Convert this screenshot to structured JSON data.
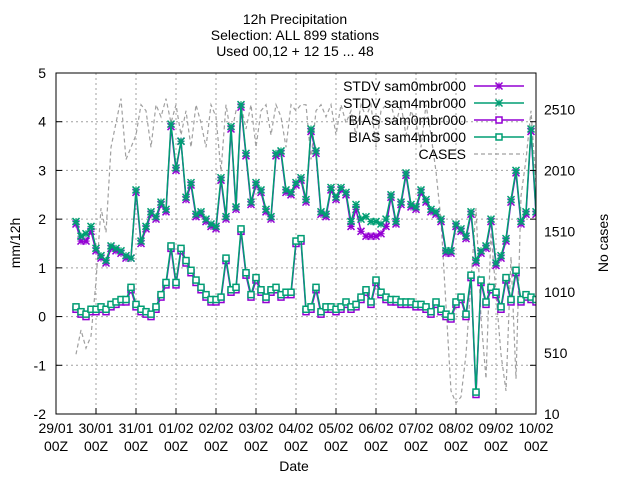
{
  "chart_data": {
    "type": "line",
    "title": [
      "12h Precipitation",
      "Selection: ALL     899 stations",
      "Used 00,12 + 12 15 ... 48"
    ],
    "xlabel": "Date",
    "ylabel": "mm/12h",
    "y2label": "No cases",
    "ylim": [
      -2,
      5
    ],
    "y2lim": [
      10,
      2810
    ],
    "xlim": [
      0,
      12
    ],
    "yticks": [
      "-2",
      "-1",
      "0",
      "1",
      "2",
      "3",
      "4",
      "5"
    ],
    "y2ticks": [
      "10",
      "510",
      "1010",
      "1510",
      "2010",
      "2510"
    ],
    "xticks": [
      {
        "top": "29/01",
        "bottom": "00Z"
      },
      {
        "top": "30/01",
        "bottom": "00Z"
      },
      {
        "top": "31/01",
        "bottom": "00Z"
      },
      {
        "top": "01/02",
        "bottom": "00Z"
      },
      {
        "top": "02/02",
        "bottom": "00Z"
      },
      {
        "top": "03/02",
        "bottom": "00Z"
      },
      {
        "top": "04/02",
        "bottom": "00Z"
      },
      {
        "top": "05/02",
        "bottom": "00Z"
      },
      {
        "top": "06/02",
        "bottom": "00Z"
      },
      {
        "top": "07/02",
        "bottom": "00Z"
      },
      {
        "top": "08/02",
        "bottom": "00Z"
      },
      {
        "top": "09/02",
        "bottom": "00Z"
      },
      {
        "top": "10/02",
        "bottom": "00Z"
      }
    ],
    "grid": true,
    "legend_position": "top-right",
    "series": [
      {
        "name": "STDV sam0mbr000",
        "color": "#9400d3",
        "marker": "x",
        "x": [
          0.5,
          0.625,
          0.75,
          0.875,
          1.0,
          1.125,
          1.25,
          1.375,
          1.5,
          1.625,
          1.75,
          1.875,
          2.0,
          2.125,
          2.25,
          2.375,
          2.5,
          2.625,
          2.75,
          2.875,
          3.0,
          3.125,
          3.25,
          3.375,
          3.5,
          3.625,
          3.75,
          3.875,
          4.0,
          4.125,
          4.25,
          4.375,
          4.5,
          4.625,
          4.75,
          4.875,
          5.0,
          5.125,
          5.25,
          5.375,
          5.5,
          5.625,
          5.75,
          5.875,
          6.0,
          6.125,
          6.25,
          6.375,
          6.5,
          6.625,
          6.75,
          6.875,
          7.0,
          7.125,
          7.25,
          7.375,
          7.5,
          7.625,
          7.75,
          7.875,
          8.0,
          8.125,
          8.25,
          8.375,
          8.5,
          8.625,
          8.75,
          8.875,
          9.0,
          9.125,
          9.25,
          9.375,
          9.5,
          9.625,
          9.75,
          9.875,
          10.0,
          10.125,
          10.25,
          10.375,
          10.5,
          10.625,
          10.75,
          10.875,
          11.0,
          11.125,
          11.25,
          11.375,
          11.5,
          11.625,
          11.75,
          11.875,
          12.0
        ],
        "y": [
          1.9,
          1.55,
          1.55,
          1.75,
          1.35,
          1.2,
          1.1,
          1.4,
          1.35,
          1.3,
          1.2,
          1.2,
          2.55,
          1.5,
          1.8,
          2.1,
          2.0,
          2.3,
          2.15,
          3.9,
          3.0,
          3.6,
          2.4,
          2.7,
          2.05,
          2.1,
          1.95,
          1.85,
          1.8,
          2.8,
          2.0,
          3.85,
          2.2,
          4.3,
          3.3,
          2.3,
          2.7,
          2.55,
          2.15,
          2.0,
          3.3,
          3.35,
          2.55,
          2.5,
          2.7,
          2.8,
          2.35,
          3.8,
          3.35,
          2.1,
          2.05,
          2.6,
          2.4,
          2.6,
          2.5,
          1.85,
          2.2,
          1.75,
          1.65,
          1.65,
          1.65,
          1.7,
          1.85,
          2.45,
          1.9,
          2.3,
          2.9,
          2.25,
          2.2,
          2.55,
          2.35,
          2.15,
          2.1,
          1.95,
          1.3,
          1.3,
          1.85,
          1.75,
          1.6,
          2.1,
          1.1,
          1.3,
          1.4,
          1.95,
          1.05,
          1.2,
          1.55,
          2.35,
          2.95,
          1.9,
          2.1,
          3.8,
          2.1
        ]
      },
      {
        "name": "STDV sam4mbr000",
        "color": "#009e73",
        "marker": "x",
        "x": [
          0.5,
          0.625,
          0.75,
          0.875,
          1.0,
          1.125,
          1.25,
          1.375,
          1.5,
          1.625,
          1.75,
          1.875,
          2.0,
          2.125,
          2.25,
          2.375,
          2.5,
          2.625,
          2.75,
          2.875,
          3.0,
          3.125,
          3.25,
          3.375,
          3.5,
          3.625,
          3.75,
          3.875,
          4.0,
          4.125,
          4.25,
          4.375,
          4.5,
          4.625,
          4.75,
          4.875,
          5.0,
          5.125,
          5.25,
          5.375,
          5.5,
          5.625,
          5.75,
          5.875,
          6.0,
          6.125,
          6.25,
          6.375,
          6.5,
          6.625,
          6.75,
          6.875,
          7.0,
          7.125,
          7.25,
          7.375,
          7.5,
          7.625,
          7.75,
          7.875,
          8.0,
          8.125,
          8.25,
          8.375,
          8.5,
          8.625,
          8.75,
          8.875,
          9.0,
          9.125,
          9.25,
          9.375,
          9.5,
          9.625,
          9.75,
          9.875,
          10.0,
          10.125,
          10.25,
          10.375,
          10.5,
          10.625,
          10.75,
          10.875,
          11.0,
          11.125,
          11.25,
          11.375,
          11.5,
          11.625,
          11.75,
          11.875,
          12.0
        ],
        "y": [
          1.95,
          1.65,
          1.7,
          1.85,
          1.4,
          1.25,
          1.15,
          1.45,
          1.4,
          1.35,
          1.25,
          1.2,
          2.6,
          1.55,
          1.85,
          2.15,
          2.05,
          2.35,
          2.2,
          3.95,
          3.05,
          3.6,
          2.45,
          2.75,
          2.1,
          2.15,
          2.0,
          1.9,
          1.85,
          2.85,
          2.05,
          3.9,
          2.25,
          4.35,
          3.35,
          2.35,
          2.75,
          2.6,
          2.2,
          2.05,
          3.35,
          3.4,
          2.6,
          2.55,
          2.75,
          2.85,
          2.4,
          3.85,
          3.4,
          2.15,
          2.1,
          2.65,
          2.45,
          2.65,
          2.55,
          1.95,
          2.3,
          2.0,
          2.05,
          1.95,
          1.95,
          1.9,
          2.0,
          2.5,
          1.95,
          2.35,
          2.95,
          2.3,
          2.25,
          2.6,
          2.4,
          2.2,
          2.15,
          2.0,
          1.35,
          1.35,
          1.9,
          1.8,
          1.65,
          2.15,
          1.15,
          1.35,
          1.45,
          2.0,
          1.1,
          1.25,
          1.6,
          2.4,
          3.0,
          1.95,
          2.15,
          3.85,
          2.15
        ]
      },
      {
        "name": "BIAS sam0mbr000",
        "color": "#9400d3",
        "marker": "square",
        "x": [
          0.5,
          0.625,
          0.75,
          0.875,
          1.0,
          1.125,
          1.25,
          1.375,
          1.5,
          1.625,
          1.75,
          1.875,
          2.0,
          2.125,
          2.25,
          2.375,
          2.5,
          2.625,
          2.75,
          2.875,
          3.0,
          3.125,
          3.25,
          3.375,
          3.5,
          3.625,
          3.75,
          3.875,
          4.0,
          4.125,
          4.25,
          4.375,
          4.5,
          4.625,
          4.75,
          4.875,
          5.0,
          5.125,
          5.25,
          5.375,
          5.5,
          5.625,
          5.75,
          5.875,
          6.0,
          6.125,
          6.25,
          6.375,
          6.5,
          6.625,
          6.75,
          6.875,
          7.0,
          7.125,
          7.25,
          7.375,
          7.5,
          7.625,
          7.75,
          7.875,
          8.0,
          8.125,
          8.25,
          8.375,
          8.5,
          8.625,
          8.75,
          8.875,
          9.0,
          9.125,
          9.25,
          9.375,
          9.5,
          9.625,
          9.75,
          9.875,
          10.0,
          10.125,
          10.25,
          10.375,
          10.5,
          10.625,
          10.75,
          10.875,
          11.0,
          11.125,
          11.25,
          11.375,
          11.5,
          11.625,
          11.75,
          11.875,
          12.0
        ],
        "y": [
          0.15,
          0.05,
          0.0,
          0.1,
          0.1,
          0.15,
          0.1,
          0.2,
          0.25,
          0.3,
          0.3,
          0.55,
          0.2,
          0.1,
          0.05,
          0.0,
          0.15,
          0.4,
          0.65,
          1.4,
          0.65,
          1.35,
          1.1,
          0.9,
          0.7,
          0.55,
          0.4,
          0.3,
          0.3,
          0.35,
          1.15,
          0.5,
          0.55,
          1.75,
          0.85,
          0.4,
          0.75,
          0.5,
          0.35,
          0.5,
          0.55,
          0.4,
          0.45,
          0.45,
          1.5,
          1.55,
          0.1,
          0.15,
          0.55,
          0.05,
          0.15,
          0.15,
          0.1,
          0.15,
          0.25,
          0.15,
          0.2,
          0.35,
          0.5,
          0.25,
          0.7,
          0.45,
          0.35,
          0.3,
          0.3,
          0.25,
          0.25,
          0.25,
          0.2,
          0.2,
          0.15,
          0.05,
          0.25,
          0.1,
          0.0,
          -0.05,
          0.25,
          0.35,
          0.0,
          0.8,
          -1.6,
          0.7,
          0.25,
          0.55,
          0.45,
          0.15,
          0.75,
          0.3,
          0.9,
          0.3,
          0.4,
          0.35,
          0.3
        ]
      },
      {
        "name": "BIAS sam4mbr000",
        "color": "#009e73",
        "marker": "square",
        "x": [
          0.5,
          0.625,
          0.75,
          0.875,
          1.0,
          1.125,
          1.25,
          1.375,
          1.5,
          1.625,
          1.75,
          1.875,
          2.0,
          2.125,
          2.25,
          2.375,
          2.5,
          2.625,
          2.75,
          2.875,
          3.0,
          3.125,
          3.25,
          3.375,
          3.5,
          3.625,
          3.75,
          3.875,
          4.0,
          4.125,
          4.25,
          4.375,
          4.5,
          4.625,
          4.75,
          4.875,
          5.0,
          5.125,
          5.25,
          5.375,
          5.5,
          5.625,
          5.75,
          5.875,
          6.0,
          6.125,
          6.25,
          6.375,
          6.5,
          6.625,
          6.75,
          6.875,
          7.0,
          7.125,
          7.25,
          7.375,
          7.5,
          7.625,
          7.75,
          7.875,
          8.0,
          8.125,
          8.25,
          8.375,
          8.5,
          8.625,
          8.75,
          8.875,
          9.0,
          9.125,
          9.25,
          9.375,
          9.5,
          9.625,
          9.75,
          9.875,
          10.0,
          10.125,
          10.25,
          10.375,
          10.5,
          10.625,
          10.75,
          10.875,
          11.0,
          11.125,
          11.25,
          11.375,
          11.5,
          11.625,
          11.75,
          11.875,
          12.0
        ],
        "y": [
          0.2,
          0.1,
          0.05,
          0.15,
          0.15,
          0.2,
          0.15,
          0.25,
          0.3,
          0.35,
          0.35,
          0.6,
          0.25,
          0.15,
          0.1,
          0.05,
          0.2,
          0.45,
          0.7,
          1.45,
          0.7,
          1.4,
          1.15,
          0.95,
          0.75,
          0.6,
          0.45,
          0.35,
          0.35,
          0.4,
          1.2,
          0.55,
          0.6,
          1.8,
          0.9,
          0.45,
          0.8,
          0.55,
          0.4,
          0.55,
          0.6,
          0.45,
          0.5,
          0.5,
          1.55,
          1.6,
          0.15,
          0.2,
          0.6,
          0.1,
          0.2,
          0.2,
          0.15,
          0.2,
          0.3,
          0.2,
          0.25,
          0.4,
          0.55,
          0.3,
          0.75,
          0.5,
          0.4,
          0.35,
          0.35,
          0.3,
          0.3,
          0.3,
          0.25,
          0.25,
          0.2,
          0.1,
          0.3,
          0.15,
          0.05,
          0.0,
          0.3,
          0.4,
          0.05,
          0.85,
          -1.55,
          0.75,
          0.3,
          0.6,
          0.5,
          0.2,
          0.8,
          0.35,
          0.95,
          0.35,
          0.45,
          0.4,
          0.35
        ]
      },
      {
        "name": "CASES",
        "color": "#a0a0a0",
        "marker": "none",
        "dashed": true,
        "axis": "y2",
        "x": [
          0.5,
          0.625,
          0.75,
          0.875,
          1.0,
          1.125,
          1.25,
          1.375,
          1.5,
          1.625,
          1.75,
          1.875,
          2.0,
          2.125,
          2.25,
          2.375,
          2.5,
          2.625,
          2.75,
          2.875,
          3.0,
          3.125,
          3.25,
          3.375,
          3.5,
          3.625,
          3.75,
          3.875,
          4.0,
          4.125,
          4.25,
          4.375,
          4.5,
          4.625,
          4.75,
          4.875,
          5.0,
          5.125,
          5.25,
          5.375,
          5.5,
          5.625,
          5.75,
          5.875,
          6.0,
          6.125,
          6.25,
          6.375,
          6.5,
          6.625,
          6.75,
          6.875,
          7.0,
          7.125,
          7.25,
          7.375,
          7.5,
          7.625,
          7.75,
          7.875,
          8.0,
          8.125,
          8.25,
          8.375,
          8.5,
          8.625,
          8.75,
          8.875,
          9.0,
          9.125,
          9.25,
          9.375,
          9.5,
          9.625,
          9.75,
          9.875,
          10.0,
          10.125,
          10.25,
          10.375,
          10.5,
          10.625,
          10.75,
          10.875,
          11.0,
          11.125,
          11.25,
          11.375,
          11.5,
          11.625,
          11.75,
          11.875,
          12.0
        ],
        "y": [
          500,
          700,
          550,
          650,
          1100,
          1700,
          1500,
          2200,
          2400,
          2600,
          2100,
          2200,
          2300,
          2550,
          2500,
          2200,
          2550,
          2450,
          2600,
          2400,
          2550,
          2300,
          2500,
          2200,
          2550,
          2400,
          2200,
          2550,
          2450,
          2000,
          2550,
          2300,
          2500,
          2550,
          2350,
          2550,
          2200,
          2500,
          2550,
          2300,
          2550,
          2450,
          2200,
          2550,
          2500,
          2550,
          2550,
          2100,
          2500,
          2550,
          2450,
          2550,
          2300,
          2550,
          2400,
          2500,
          2300,
          2550,
          2450,
          2550,
          2200,
          2500,
          2550,
          2550,
          2400,
          2550,
          2300,
          2500,
          2400,
          2200,
          2550,
          2300,
          2000,
          1600,
          900,
          200,
          100,
          150,
          500,
          1100,
          1700,
          800,
          300,
          1500,
          1000,
          500,
          200,
          1300,
          300,
          1800,
          2100,
          2500,
          1900
        ]
      }
    ]
  }
}
